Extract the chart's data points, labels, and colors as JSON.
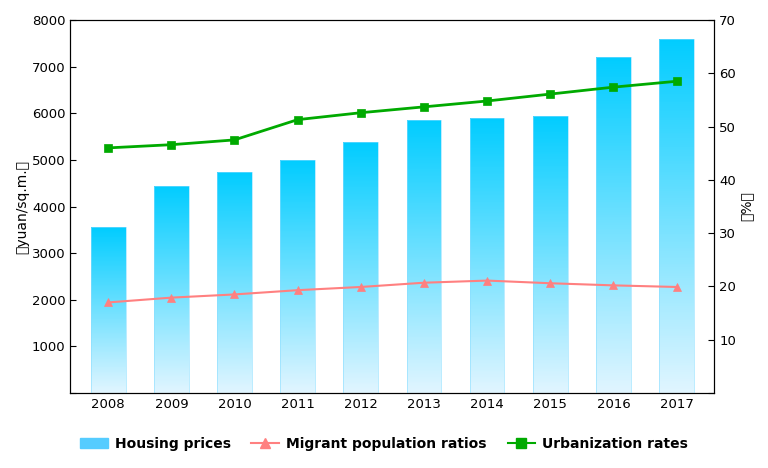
{
  "years": [
    2008,
    2009,
    2010,
    2011,
    2012,
    2013,
    2014,
    2015,
    2016,
    2017
  ],
  "housing_prices": [
    3550,
    4450,
    4750,
    5000,
    5380,
    5850,
    5900,
    5950,
    7200,
    7600
  ],
  "migrant_population_ratios": [
    17.0,
    17.9,
    18.5,
    19.3,
    19.9,
    20.7,
    21.1,
    20.6,
    20.2,
    19.9
  ],
  "urbanization_rates": [
    46.0,
    46.6,
    47.5,
    51.3,
    52.6,
    53.7,
    54.8,
    56.1,
    57.4,
    58.5
  ],
  "bar_color_top": "#00ccff",
  "bar_color_bottom": "#e8f8ff",
  "line_migrant_color": "#ff8080",
  "line_urban_color": "#00aa00",
  "ylabel_left": "（yuan/sq.m.）",
  "ylabel_right": "（%）",
  "ylim_left": [
    0,
    8000
  ],
  "ylim_right": [
    0,
    70
  ],
  "yticks_left": [
    0,
    1000,
    2000,
    3000,
    4000,
    5000,
    6000,
    7000,
    8000
  ],
  "yticks_right": [
    0,
    10,
    20,
    30,
    40,
    50,
    60,
    70
  ],
  "legend_labels": [
    "Housing prices",
    "Migrant population ratios",
    "Urbanization rates"
  ],
  "background_color": "#ffffff"
}
